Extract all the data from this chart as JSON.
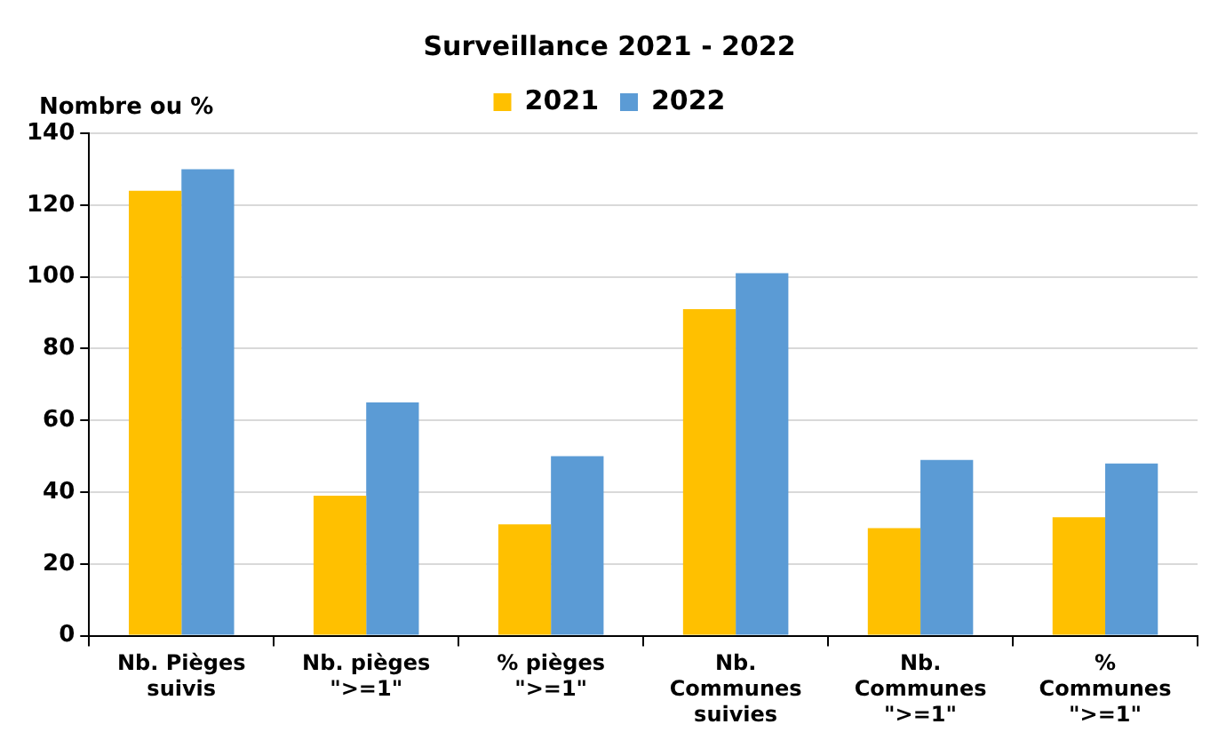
{
  "chart_data": {
    "type": "bar",
    "title": "Surveillance 2021 - 2022",
    "ylabel": "Nombre ou %",
    "categories": [
      "Nb. Pièges suivis",
      "Nb. pièges \">=1\"",
      "% pièges \">=1\"",
      "Nb. Communes suivies",
      "Nb. Communes \">=1\"",
      "% Communes \">=1\""
    ],
    "series": [
      {
        "name": "2021",
        "color": "#ffc000",
        "values": [
          124,
          39,
          31,
          91,
          30,
          33
        ]
      },
      {
        "name": "2022",
        "color": "#5b9bd5",
        "values": [
          130,
          65,
          50,
          101,
          49,
          48
        ]
      }
    ],
    "ylim": [
      0,
      140
    ],
    "yticks": [
      0,
      20,
      40,
      60,
      80,
      100,
      120,
      140
    ],
    "grid": "y",
    "legend": "top"
  }
}
